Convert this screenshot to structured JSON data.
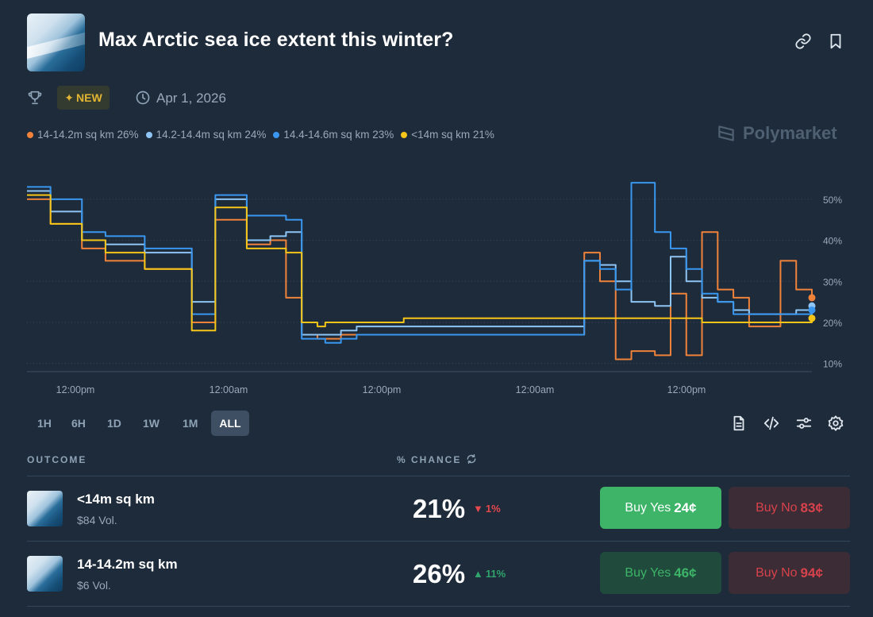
{
  "header": {
    "title": "Max Arctic sea ice extent this winter?",
    "badge": "NEW",
    "date": "Apr 1, 2026"
  },
  "legend": [
    {
      "label": "14-14.2m sq km 26%",
      "color": "#f0823a"
    },
    {
      "label": "14.2-14.4m sq km 24%",
      "color": "#8ec5f5"
    },
    {
      "label": "14.4-14.6m sq km 23%",
      "color": "#3a97f0"
    },
    {
      "label": "<14m sq km 21%",
      "color": "#f5c518"
    }
  ],
  "brand": "Polymarket",
  "chart_data": {
    "type": "line",
    "y_ticks": [
      "50%",
      "40%",
      "30%",
      "20%",
      "10%"
    ],
    "y_tick_values": [
      50,
      40,
      30,
      20,
      10
    ],
    "ylim": [
      8,
      55
    ],
    "x_tick_labels": [
      "12:00pm",
      "12:00am",
      "12:00pm",
      "12:00am",
      "12:00pm"
    ],
    "x": [
      0,
      3,
      7,
      10,
      15,
      21,
      24,
      28,
      31,
      33,
      35,
      37,
      38,
      40,
      42,
      44,
      46,
      48,
      50,
      52,
      54,
      56,
      58,
      60,
      62,
      64,
      66,
      68,
      70,
      71,
      73,
      75,
      77,
      80,
      82,
      84,
      86,
      88,
      90,
      92,
      94,
      96,
      98,
      100
    ],
    "series": [
      {
        "name": "14-14.2m sq km",
        "color": "#f0823a",
        "values": [
          50,
          44,
          38,
          35,
          33,
          20,
          45,
          39,
          40,
          26,
          17,
          16,
          16,
          17,
          17,
          17,
          17,
          17,
          17,
          17,
          17,
          17,
          17,
          17,
          17,
          17,
          17,
          17,
          17,
          37,
          30,
          11,
          13,
          12,
          27,
          12,
          42,
          28,
          26,
          19,
          19,
          35,
          28,
          26
        ]
      },
      {
        "name": "14.2-14.4m sq km",
        "color": "#8ec5f5",
        "values": [
          52,
          47,
          40,
          39,
          37,
          25,
          50,
          40,
          41,
          42,
          17,
          17,
          17,
          18,
          19,
          19,
          19,
          19,
          19,
          19,
          19,
          19,
          19,
          19,
          19,
          19,
          19,
          19,
          19,
          35,
          34,
          30,
          25,
          24,
          36,
          30,
          26,
          25,
          23,
          22,
          22,
          22,
          23,
          24
        ]
      },
      {
        "name": "14.4-14.6m sq km",
        "color": "#3a97f0",
        "values": [
          53,
          50,
          42,
          41,
          38,
          22,
          51,
          46,
          46,
          45,
          16,
          16,
          15,
          16,
          17,
          17,
          17,
          17,
          17,
          17,
          17,
          17,
          17,
          17,
          17,
          17,
          17,
          17,
          17,
          35,
          33,
          28,
          54,
          42,
          38,
          33,
          27,
          25,
          22,
          22,
          22,
          22,
          22,
          23
        ]
      },
      {
        "name": "<14m sq km",
        "color": "#f5c518",
        "values": [
          51,
          44,
          40,
          37,
          33,
          18,
          48,
          38,
          38,
          37,
          20,
          19,
          20,
          20,
          20,
          20,
          20,
          21,
          21,
          21,
          21,
          21,
          21,
          21,
          21,
          21,
          21,
          21,
          21,
          21,
          21,
          21,
          21,
          21,
          21,
          21,
          20,
          20,
          20,
          20,
          20,
          20,
          20,
          21
        ]
      }
    ]
  },
  "timeframes": [
    "1H",
    "6H",
    "1D",
    "1W",
    "1M",
    "ALL"
  ],
  "active_timeframe": "ALL",
  "table": {
    "col_outcome": "OUTCOME",
    "col_chance": "% CHANCE",
    "rows": [
      {
        "name": "<14m sq km",
        "volume": "$84 Vol.",
        "chance": "21%",
        "change": "1%",
        "direction": "down",
        "yes_label": "Buy Yes",
        "yes_price": "24¢",
        "no_label": "Buy No",
        "no_price": "83¢"
      },
      {
        "name": "14-14.2m sq km",
        "volume": "$6 Vol.",
        "chance": "26%",
        "change": "11%",
        "direction": "up",
        "yes_label": "Buy Yes",
        "yes_price": "46¢",
        "no_label": "Buy No",
        "no_price": "94¢"
      }
    ]
  }
}
